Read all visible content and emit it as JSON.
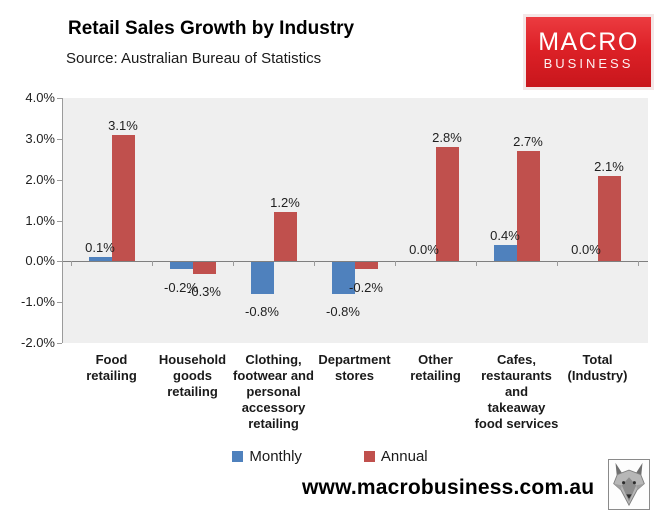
{
  "header": {
    "title": "Retail Sales Growth by Industry",
    "source": "Source: Australian Bureau of Statistics"
  },
  "logo": {
    "line1": "MACRO",
    "line2": "BUSINESS",
    "bg_color": "#dd2127"
  },
  "chart_data": {
    "type": "bar",
    "title": "Retail Sales Growth by Industry",
    "categories": [
      "Food retailing",
      "Household goods retailing",
      "Clothing, footwear and personal accessory retailing",
      "Department stores",
      "Other retailing",
      "Cafes, restaurants and takeaway food services",
      "Total (Industry)"
    ],
    "series": [
      {
        "name": "Monthly",
        "color": "#4F81BD",
        "values": [
          0.1,
          -0.2,
          -0.8,
          -0.8,
          0.0,
          0.4,
          0.0
        ]
      },
      {
        "name": "Annual",
        "color": "#C0504D",
        "values": [
          3.1,
          -0.3,
          1.2,
          -0.2,
          2.8,
          2.7,
          2.1
        ]
      }
    ],
    "data_labels": [
      [
        "0.1%",
        "-0.2%",
        "-0.8%",
        "-0.8%",
        "0.0%",
        "0.4%",
        "0.0%"
      ],
      [
        "3.1%",
        "-0.3%",
        "1.2%",
        "-0.2%",
        "2.8%",
        "2.7%",
        "2.1%"
      ]
    ],
    "ylabel": "",
    "xlabel": "",
    "ylim": [
      -2.0,
      4.0
    ],
    "yticks": [
      "4.0%",
      "3.0%",
      "2.0%",
      "1.0%",
      "0.0%",
      "-1.0%",
      "-2.0%"
    ],
    "grid": false,
    "plot_bg_color": "#efefef",
    "legend_position": "bottom",
    "legend": [
      "Monthly",
      "Annual"
    ]
  },
  "footer": {
    "url": "www.macrobusiness.com.au"
  }
}
